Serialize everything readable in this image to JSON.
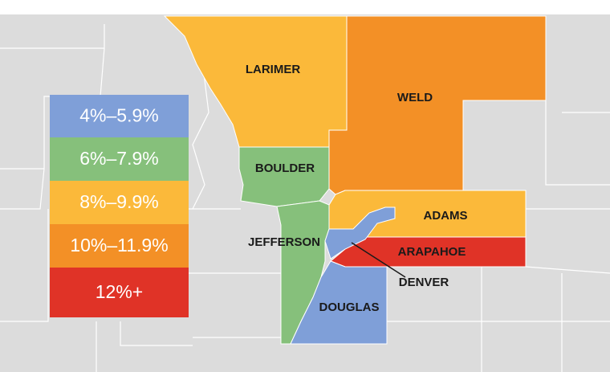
{
  "legend": {
    "items": [
      {
        "label": "4%–5.9%",
        "color": "#7f9fd8"
      },
      {
        "label": "6%–7.9%",
        "color": "#86c07b"
      },
      {
        "label": "8%–9.9%",
        "color": "#fbb93a"
      },
      {
        "label": "10%–11.9%",
        "color": "#f39026"
      },
      {
        "label": "12%+",
        "color": "#e03327"
      }
    ]
  },
  "counties": [
    {
      "name": "LARIMER",
      "color": "#fbb93a"
    },
    {
      "name": "WELD",
      "color": "#f39026"
    },
    {
      "name": "BOULDER",
      "color": "#86c07b"
    },
    {
      "name": "ADAMS",
      "color": "#fbb93a"
    },
    {
      "name": "JEFFERSON",
      "color": "#86c07b"
    },
    {
      "name": "ARAPAHOE",
      "color": "#e03327"
    },
    {
      "name": "DENVER",
      "color": "#7f9fd8"
    },
    {
      "name": "DOUGLAS",
      "color": "#7f9fd8"
    }
  ]
}
